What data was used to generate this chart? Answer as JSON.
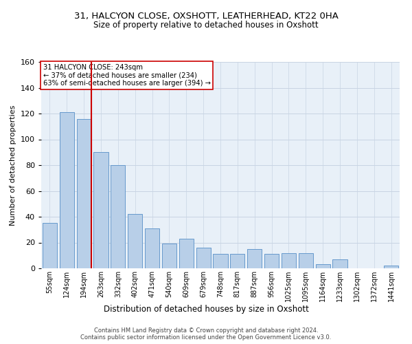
{
  "title_line1": "31, HALCYON CLOSE, OXSHOTT, LEATHERHEAD, KT22 0HA",
  "title_line2": "Size of property relative to detached houses in Oxshott",
  "xlabel": "Distribution of detached houses by size in Oxshott",
  "ylabel": "Number of detached properties",
  "categories": [
    "55sqm",
    "124sqm",
    "194sqm",
    "263sqm",
    "332sqm",
    "402sqm",
    "471sqm",
    "540sqm",
    "609sqm",
    "679sqm",
    "748sqm",
    "817sqm",
    "887sqm",
    "956sqm",
    "1025sqm",
    "1095sqm",
    "1164sqm",
    "1233sqm",
    "1302sqm",
    "1372sqm",
    "1441sqm"
  ],
  "values": [
    35,
    121,
    116,
    90,
    80,
    42,
    31,
    19,
    23,
    16,
    11,
    11,
    15,
    11,
    12,
    12,
    3,
    7,
    0,
    0,
    2
  ],
  "bar_color": "#b8cfe8",
  "bar_edge_color": "#6699cc",
  "grid_color": "#c8d4e3",
  "background_color": "#e8f0f8",
  "vline_color": "#cc0000",
  "annotation_text": "31 HALCYON CLOSE: 243sqm\n← 37% of detached houses are smaller (234)\n63% of semi-detached houses are larger (394) →",
  "annotation_box_color": "#ffffff",
  "annotation_box_edge": "#cc0000",
  "ylim": [
    0,
    160
  ],
  "yticks": [
    0,
    20,
    40,
    60,
    80,
    100,
    120,
    140,
    160
  ],
  "footer1": "Contains HM Land Registry data © Crown copyright and database right 2024.",
  "footer2": "Contains public sector information licensed under the Open Government Licence v3.0."
}
